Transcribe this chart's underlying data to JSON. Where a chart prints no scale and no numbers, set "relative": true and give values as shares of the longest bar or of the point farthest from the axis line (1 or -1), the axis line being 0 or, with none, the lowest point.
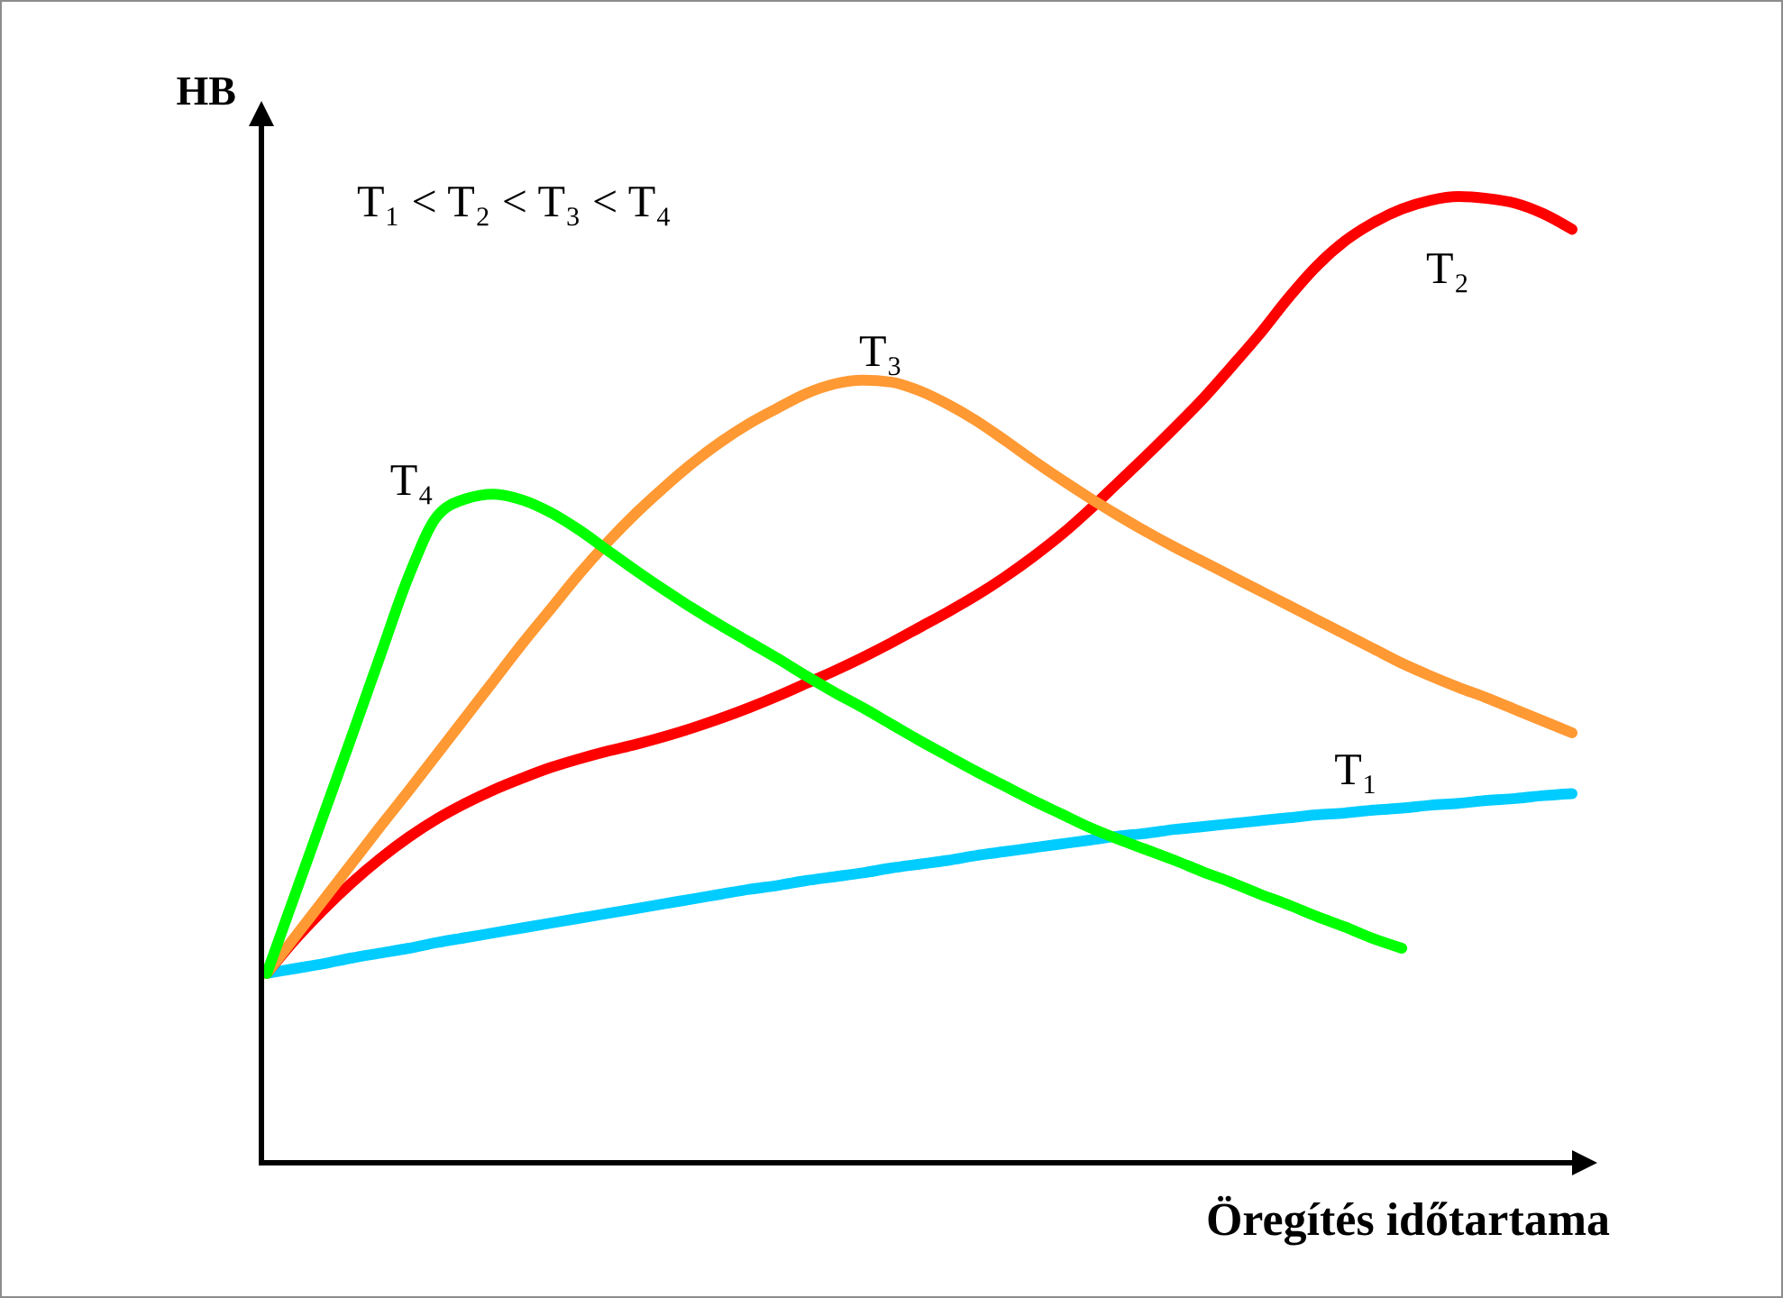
{
  "chart_data": {
    "type": "line",
    "relative": true,
    "xlabel": "Öregítés időtartama",
    "ylabel": "HB",
    "annotations": [
      "T₁ < T₂ < T₃ < T₄"
    ],
    "categories": [
      null,
      null,
      null,
      null,
      null,
      null,
      null,
      null,
      null,
      null,
      null,
      null,
      null,
      null,
      null,
      null,
      null,
      null,
      null,
      null,
      null,
      null,
      null,
      null,
      null,
      null,
      null,
      null,
      null,
      null,
      null,
      null,
      null,
      null,
      null,
      null,
      null,
      null,
      null,
      null,
      null,
      null,
      null,
      null,
      null,
      null,
      null
    ],
    "series": [
      {
        "name": "T₁",
        "color": "#00ccff",
        "values": [
          0.196,
          0.201,
          0.206,
          0.212,
          0.217,
          0.222,
          0.228,
          0.233,
          0.238,
          0.243,
          0.248,
          0.253,
          0.258,
          0.263,
          0.268,
          0.273,
          0.278,
          0.283,
          0.287,
          0.292,
          0.296,
          0.3,
          0.305,
          0.309,
          0.313,
          0.318,
          0.322,
          0.326,
          0.33,
          0.334,
          0.338,
          0.341,
          0.345,
          0.348,
          0.351,
          0.354,
          0.357,
          0.36,
          0.362,
          0.365,
          0.367,
          0.37,
          0.372,
          0.375,
          0.377,
          0.38,
          0.382
        ]
      },
      {
        "name": "T₂",
        "color": "#ff0000",
        "values": [
          0.196,
          0.231,
          0.262,
          0.29,
          0.315,
          0.337,
          0.356,
          0.372,
          0.386,
          0.398,
          0.409,
          0.418,
          0.426,
          0.433,
          0.441,
          0.45,
          0.46,
          0.471,
          0.483,
          0.496,
          0.509,
          0.523,
          0.538,
          0.554,
          0.57,
          0.587,
          0.606,
          0.627,
          0.65,
          0.676,
          0.704,
          0.732,
          0.761,
          0.791,
          0.824,
          0.858,
          0.895,
          0.928,
          0.954,
          0.973,
          0.987,
          0.996,
          1,
          0.998,
          0.993,
          0.982,
          0.966
        ]
      },
      {
        "name": "T₃",
        "color": "#ff9933",
        "values": [
          0.196,
          0.234,
          0.272,
          0.31,
          0.348,
          0.385,
          0.423,
          0.461,
          0.499,
          0.537,
          0.573,
          0.609,
          0.642,
          0.672,
          0.699,
          0.724,
          0.746,
          0.765,
          0.781,
          0.796,
          0.806,
          0.81,
          0.808,
          0.799,
          0.785,
          0.768,
          0.748,
          0.727,
          0.707,
          0.688,
          0.67,
          0.653,
          0.637,
          0.622,
          0.607,
          0.592,
          0.577,
          0.562,
          0.547,
          0.532,
          0.517,
          0.504,
          0.492,
          0.481,
          0.469,
          0.457,
          0.445
        ]
      },
      {
        "name": "T₄",
        "color": "#00ff00",
        "values": [
          0.196,
          0.278,
          0.36,
          0.442,
          0.525,
          0.607,
          0.669,
          0.687,
          0.692,
          0.686,
          0.673,
          0.655,
          0.634,
          0.613,
          0.593,
          0.574,
          0.556,
          0.539,
          0.522,
          0.504,
          0.487,
          0.471,
          0.454,
          0.437,
          0.421,
          0.405,
          0.39,
          0.375,
          0.361,
          0.347,
          0.335,
          0.324,
          0.313,
          0.301,
          0.29,
          0.278,
          0.267,
          0.255,
          0.244,
          0.232,
          0.222,
          null,
          null,
          null,
          null,
          null,
          null
        ]
      }
    ]
  }
}
